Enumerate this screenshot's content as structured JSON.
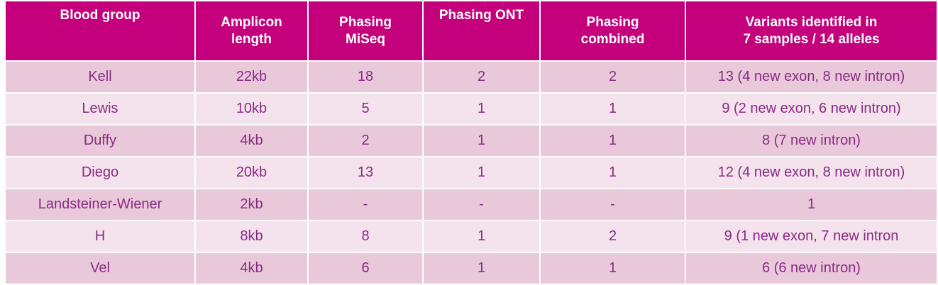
{
  "table": {
    "header": [
      [
        "Blood group"
      ],
      [
        "Amplicon",
        "length"
      ],
      [
        "Phasing",
        "MiSeq"
      ],
      [
        "Phasing ONT"
      ],
      [
        "Phasing",
        "combined"
      ],
      [
        "Variants identified in",
        "7 samples / 14 alleles"
      ]
    ],
    "rows": [
      [
        "Kell",
        "22kb",
        "18",
        "2",
        "2",
        "13 (4 new exon, 8 new intron)"
      ],
      [
        "Lewis",
        "10kb",
        "5",
        "1",
        "1",
        "9 (2 new exon, 6 new intron)"
      ],
      [
        "Duffy",
        "4kb",
        "2",
        "1",
        "1",
        "8 (7 new intron)"
      ],
      [
        "Diego",
        "20kb",
        "13",
        "1",
        "1",
        "12 (4 new exon, 8 new intron)"
      ],
      [
        "Landsteiner-Wiener",
        "2kb",
        "-",
        "-",
        "-",
        "1"
      ],
      [
        "H",
        "8kb",
        "8",
        "1",
        "2",
        "9 (1 new exon, 7 new intron"
      ],
      [
        "Vel",
        "4kb",
        "6",
        "1",
        "1",
        "6 (6 new intron)"
      ]
    ]
  }
}
